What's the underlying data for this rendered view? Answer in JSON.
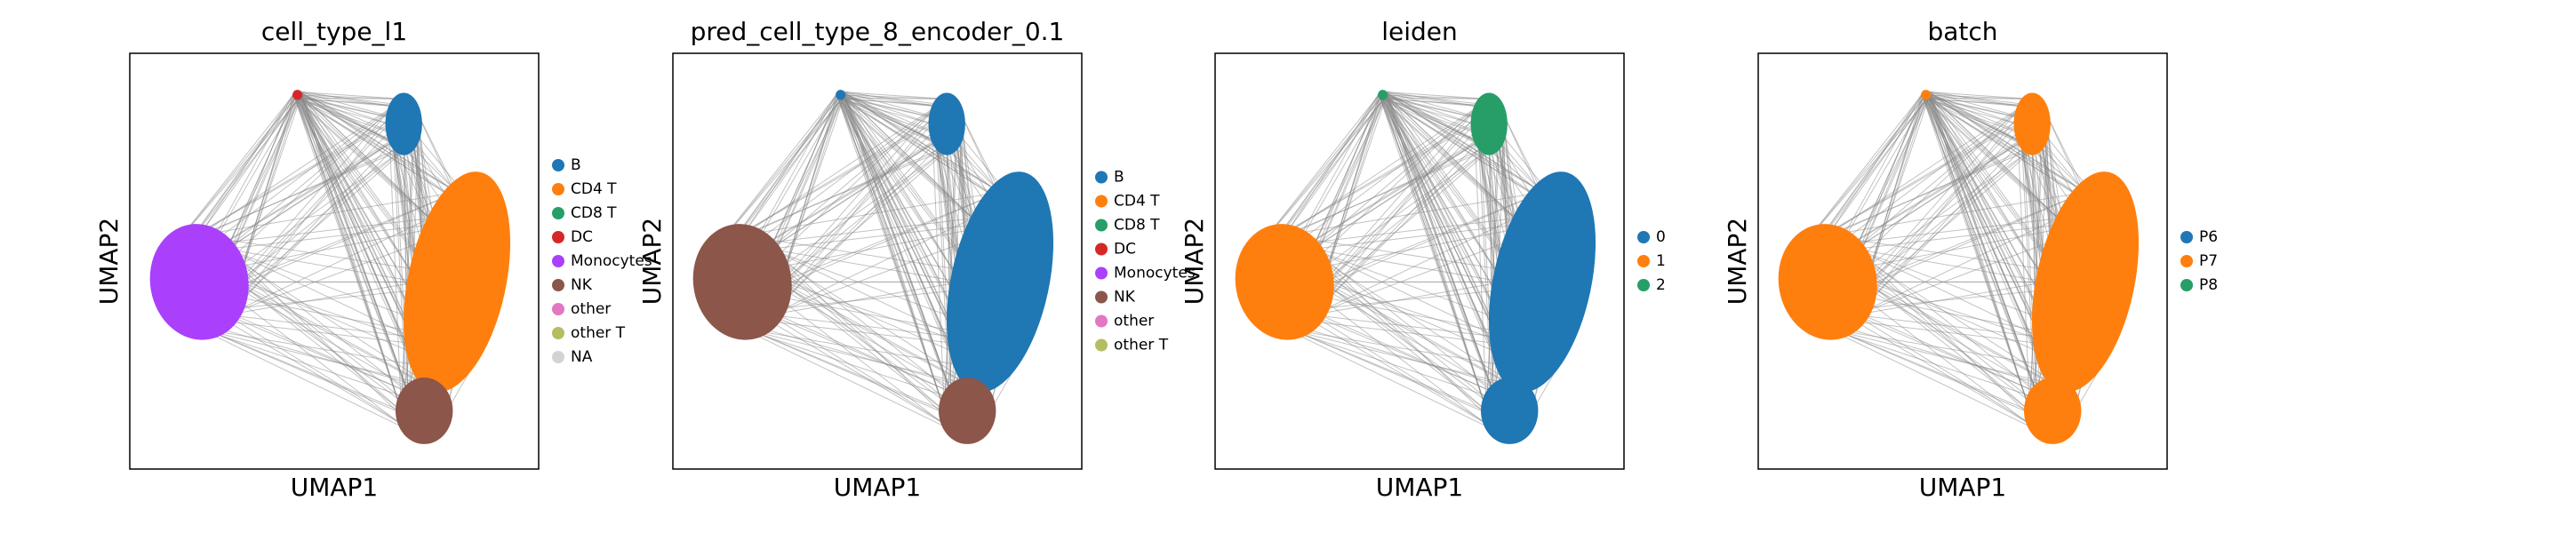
{
  "chart_data": [
    {
      "type": "scatter",
      "title": "cell_type_l1",
      "xlabel": "UMAP1",
      "ylabel": "UMAP2",
      "series": [
        {
          "name": "B",
          "color": "#1f77b4"
        },
        {
          "name": "CD4 T",
          "color": "#ff7f0e"
        },
        {
          "name": "CD8 T",
          "color": "#279e68"
        },
        {
          "name": "DC",
          "color": "#d62728"
        },
        {
          "name": "Monocytes",
          "color": "#aa40fc"
        },
        {
          "name": "NK",
          "color": "#8c564b"
        },
        {
          "name": "other",
          "color": "#e377c2"
        },
        {
          "name": "other T",
          "color": "#b5bd61"
        },
        {
          "name": "NA",
          "color": "#d3d3d3"
        }
      ]
    },
    {
      "type": "scatter",
      "title": "pred_cell_type_8_encoder_0.1",
      "xlabel": "UMAP1",
      "ylabel": "UMAP2",
      "series": [
        {
          "name": "B",
          "color": "#1f77b4"
        },
        {
          "name": "CD4 T",
          "color": "#ff7f0e"
        },
        {
          "name": "CD8 T",
          "color": "#279e68"
        },
        {
          "name": "DC",
          "color": "#d62728"
        },
        {
          "name": "Monocytes",
          "color": "#aa40fc"
        },
        {
          "name": "NK",
          "color": "#8c564b"
        },
        {
          "name": "other",
          "color": "#e377c2"
        },
        {
          "name": "other T",
          "color": "#b5bd61"
        }
      ]
    },
    {
      "type": "scatter",
      "title": "leiden",
      "xlabel": "UMAP1",
      "ylabel": "UMAP2",
      "series": [
        {
          "name": "0",
          "color": "#1f77b4"
        },
        {
          "name": "1",
          "color": "#ff7f0e"
        },
        {
          "name": "2",
          "color": "#279e68"
        }
      ]
    },
    {
      "type": "scatter",
      "title": "batch",
      "xlabel": "UMAP1",
      "ylabel": "UMAP2",
      "series": [
        {
          "name": "P6",
          "color": "#1f77b4"
        },
        {
          "name": "P7",
          "color": "#ff7f0e"
        },
        {
          "name": "P8",
          "color": "#279e68"
        }
      ]
    }
  ]
}
